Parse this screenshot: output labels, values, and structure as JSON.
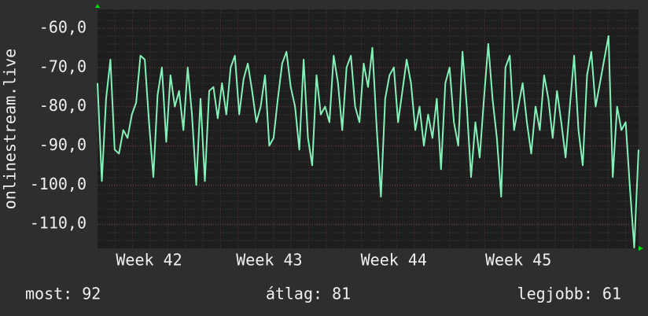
{
  "chart_data": {
    "type": "line",
    "ylabel": "onlinestream.live",
    "color": "#84f2b8",
    "grid": true,
    "ylim": [
      -116.2,
      -55.2
    ],
    "yticks": [
      {
        "value": -60,
        "label": "-60,0"
      },
      {
        "value": -70,
        "label": "-70,0"
      },
      {
        "value": -80,
        "label": "-80,0"
      },
      {
        "value": -90,
        "label": "-90,0"
      },
      {
        "value": -100,
        "label": "-100,0"
      },
      {
        "value": -110,
        "label": "-110,0"
      }
    ],
    "categories": [
      null,
      null,
      null,
      null,
      null,
      null,
      null,
      null,
      null,
      null,
      null,
      null,
      "Week 42",
      null,
      null,
      null,
      null,
      null,
      null,
      null,
      null,
      null,
      null,
      null,
      null,
      null,
      null,
      null,
      null,
      null,
      null,
      null,
      null,
      null,
      null,
      null,
      null,
      null,
      null,
      null,
      "Week 43",
      null,
      null,
      null,
      null,
      null,
      null,
      null,
      null,
      null,
      null,
      null,
      null,
      null,
      null,
      null,
      null,
      null,
      null,
      null,
      null,
      null,
      null,
      null,
      null,
      null,
      null,
      null,
      null,
      "Week 44",
      null,
      null,
      null,
      null,
      null,
      null,
      null,
      null,
      null,
      null,
      null,
      null,
      null,
      null,
      null,
      null,
      null,
      null,
      null,
      null,
      null,
      null,
      null,
      null,
      null,
      null,
      null,
      null,
      "Week 45",
      null,
      null,
      null,
      null,
      null,
      null,
      null,
      null,
      null,
      null,
      null,
      null,
      null,
      null,
      null,
      null,
      null,
      null,
      null,
      null,
      null,
      null,
      null,
      null,
      null,
      null,
      null,
      null
    ],
    "values": [
      -74,
      -99,
      -78,
      -68,
      -91,
      -92,
      -86,
      -88,
      -82,
      -79,
      -67,
      -68,
      -84,
      -98,
      -77,
      -70,
      -89,
      -72,
      -80,
      -76,
      -86,
      -70,
      -82,
      -100,
      -78,
      -99,
      -76,
      -75,
      -83,
      -74,
      -82,
      -70,
      -67,
      -82,
      -73,
      -69,
      -76,
      -84,
      -80,
      -72,
      -90,
      -88,
      -78,
      -69,
      -66,
      -75,
      -80,
      -91,
      -68,
      -88,
      -95,
      -72,
      -82,
      -80,
      -84,
      -67,
      -74,
      -86,
      -70,
      -67,
      -80,
      -84,
      -69,
      -75,
      -65,
      -85,
      -103,
      -78,
      -72,
      -70,
      -84,
      -76,
      -68,
      -74,
      -86,
      -80,
      -90,
      -82,
      -88,
      -78,
      -96,
      -74,
      -70,
      -84,
      -90,
      -66,
      -80,
      -98,
      -84,
      -93,
      -78,
      -64,
      -78,
      -88,
      -103,
      -70,
      -67,
      -86,
      -80,
      -74,
      -84,
      -92,
      -80,
      -86,
      -72,
      -78,
      -88,
      -76,
      -84,
      -93,
      -80,
      -67,
      -86,
      -95,
      -72,
      -66,
      -80,
      -74,
      -68,
      -62,
      -98,
      -80,
      -86,
      -84,
      -101,
      -116,
      -91
    ],
    "stats": [
      "most: 92",
      "átlag: 81",
      "legjobb: 61"
    ]
  }
}
